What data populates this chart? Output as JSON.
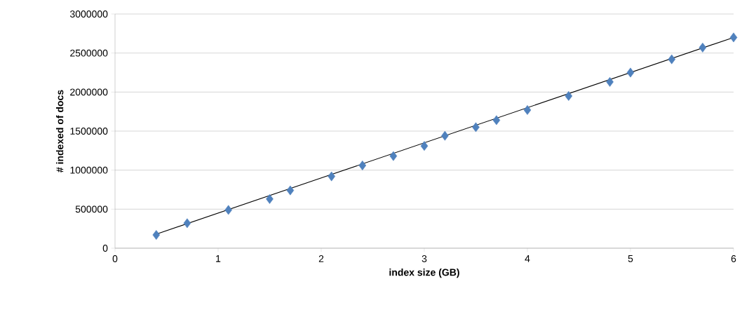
{
  "chart_data": {
    "type": "scatter",
    "xlabel": "index size (GB)",
    "ylabel": "# indexed of docs",
    "xlim": [
      0,
      6
    ],
    "ylim": [
      0,
      3000000
    ],
    "xticks": [
      0,
      1,
      2,
      3,
      4,
      5,
      6
    ],
    "yticks": [
      0,
      500000,
      1000000,
      1500000,
      2000000,
      2500000,
      3000000
    ],
    "grid": "y",
    "marker": "diamond",
    "series": [
      {
        "color": "#4f81bd",
        "x": [
          0.4,
          0.7,
          1.1,
          1.5,
          1.7,
          2.1,
          2.4,
          2.7,
          3.0,
          3.2,
          3.5,
          3.7,
          4.0,
          4.4,
          4.8,
          5.0,
          5.4,
          5.7,
          6.0
        ],
        "values": [
          170000,
          320000,
          490000,
          630000,
          740000,
          920000,
          1060000,
          1180000,
          1310000,
          1440000,
          1550000,
          1640000,
          1770000,
          1950000,
          2130000,
          2250000,
          2420000,
          2570000,
          2700000
        ]
      },
      {
        "type": "line",
        "color": "#000000",
        "x": [
          0.4,
          6.0
        ],
        "values": [
          180000,
          2700000
        ]
      }
    ]
  }
}
